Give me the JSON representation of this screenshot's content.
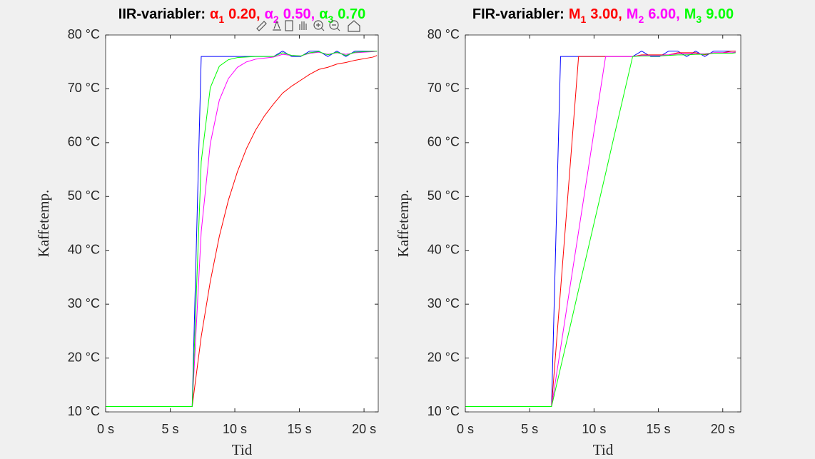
{
  "chart_data": [
    {
      "type": "line",
      "title": "IIR-variabler:",
      "xlabel": "Tid",
      "ylabel": "Kaffetemp.",
      "x": [
        0,
        6.7,
        7.4,
        8.1,
        8.8,
        9.5,
        10.2,
        10.9,
        11.6,
        12.3,
        13.0,
        13.7,
        14.4,
        15.1,
        15.8,
        16.5,
        17.2,
        17.9,
        18.6,
        19.3,
        20.0,
        20.7,
        21
      ],
      "xlim": [
        0,
        21.1
      ],
      "ylim": [
        10,
        80
      ],
      "xticks": [
        {
          "value": 0,
          "label": "0 s"
        },
        {
          "value": 5,
          "label": "5 s"
        },
        {
          "value": 10,
          "label": "10 s"
        },
        {
          "value": 15,
          "label": "15 s"
        },
        {
          "value": 20,
          "label": "20 s"
        }
      ],
      "yticks": [
        {
          "value": 10,
          "label": "10 °C"
        },
        {
          "value": 20,
          "label": "20 °C"
        },
        {
          "value": 30,
          "label": "30 °C"
        },
        {
          "value": 40,
          "label": "40 °C"
        },
        {
          "value": 50,
          "label": "50 °C"
        },
        {
          "value": 60,
          "label": "60 °C"
        },
        {
          "value": 70,
          "label": "70 °C"
        },
        {
          "value": 80,
          "label": "80 °C"
        }
      ],
      "series": [
        {
          "color": "#0000ff",
          "values": [
            11,
            11,
            76,
            76,
            76,
            76,
            76,
            76,
            76,
            76,
            76,
            77,
            76,
            76,
            77,
            77,
            76,
            77,
            76,
            77,
            77,
            77,
            77
          ]
        },
        {
          "name": "α",
          "subscript": "1",
          "param": "0.20,",
          "color": "#ff0000",
          "values": [
            11,
            11,
            24,
            34.2,
            42.6,
            49.3,
            54.6,
            58.9,
            62.3,
            65.0,
            67.2,
            69.2,
            70.5,
            71.6,
            72.7,
            73.6,
            74.0,
            74.6,
            74.9,
            75.3,
            75.6,
            75.9,
            76.2
          ]
        },
        {
          "name": "α",
          "subscript": "2",
          "param": "0.50,",
          "color": "#ff00ff",
          "values": [
            11,
            11,
            43.5,
            59.8,
            67.9,
            71.9,
            74.0,
            75.0,
            75.5,
            75.7,
            75.9,
            76.4,
            76.2,
            76.1,
            76.6,
            76.8,
            76.4,
            76.7,
            76.4,
            76.7,
            76.8,
            76.9,
            77
          ]
        },
        {
          "name": "α",
          "subscript": "3",
          "param": "0.70",
          "color": "#00ff00",
          "values": [
            11,
            11,
            56.5,
            70.2,
            74.2,
            75.4,
            75.8,
            75.9,
            76,
            76,
            76,
            76.7,
            76.2,
            76.1,
            76.7,
            76.9,
            76.3,
            76.8,
            76.2,
            76.8,
            76.9,
            77,
            77
          ]
        }
      ]
    },
    {
      "type": "line",
      "title": "FIR-variabler:",
      "xlabel": "Tid",
      "ylabel": "Kaffetemp.",
      "x": [
        0,
        6.7,
        7.4,
        8.1,
        8.8,
        9.5,
        10.2,
        10.9,
        11.6,
        12.3,
        13.0,
        13.7,
        14.4,
        15.1,
        15.8,
        16.5,
        17.2,
        17.9,
        18.6,
        19.3,
        20.0,
        20.7,
        21
      ],
      "xlim": [
        0,
        21.4
      ],
      "ylim": [
        10,
        80
      ],
      "xticks": [
        {
          "value": 0,
          "label": "0 s"
        },
        {
          "value": 5,
          "label": "5 s"
        },
        {
          "value": 10,
          "label": "10 s"
        },
        {
          "value": 15,
          "label": "15 s"
        },
        {
          "value": 20,
          "label": "20 s"
        }
      ],
      "yticks": [
        {
          "value": 10,
          "label": "10 °C"
        },
        {
          "value": 20,
          "label": "20 °C"
        },
        {
          "value": 30,
          "label": "30 °C"
        },
        {
          "value": 40,
          "label": "40 °C"
        },
        {
          "value": 50,
          "label": "50 °C"
        },
        {
          "value": 60,
          "label": "60 °C"
        },
        {
          "value": 70,
          "label": "70 °C"
        },
        {
          "value": 80,
          "label": "80 °C"
        }
      ],
      "series": [
        {
          "color": "#0000ff",
          "values": [
            11,
            11,
            76,
            76,
            76,
            76,
            76,
            76,
            76,
            76,
            76,
            77,
            76,
            76,
            77,
            77,
            76,
            77,
            76,
            77,
            77,
            77,
            77
          ]
        },
        {
          "name": "M",
          "subscript": "1",
          "param": "3.00,",
          "color": "#ff0000",
          "values": [
            11,
            11,
            32.7,
            54.3,
            76,
            76,
            76,
            76,
            76,
            76,
            76,
            76.3,
            76.3,
            76.3,
            76.3,
            76.7,
            76.7,
            76.7,
            76.3,
            76.7,
            76.7,
            77,
            77
          ]
        },
        {
          "name": "M",
          "subscript": "2",
          "param": "6.00,",
          "color": "#ff00ff",
          "values": [
            11,
            11,
            21.8,
            32.7,
            43.5,
            54.3,
            65.2,
            76,
            76,
            76,
            76,
            76.2,
            76.2,
            76.2,
            76.3,
            76.5,
            76.5,
            76.5,
            76.5,
            76.7,
            76.7,
            76.7,
            76.8
          ]
        },
        {
          "name": "M",
          "subscript": "3",
          "param": "9.00",
          "color": "#00ff00",
          "values": [
            11,
            11,
            18.2,
            25.4,
            32.7,
            39.9,
            47.1,
            54.3,
            61.6,
            68.8,
            76,
            76.1,
            76.1,
            76.1,
            76.2,
            76.3,
            76.3,
            76.4,
            76.4,
            76.6,
            76.6,
            76.6,
            76.7
          ]
        }
      ]
    }
  ]
}
